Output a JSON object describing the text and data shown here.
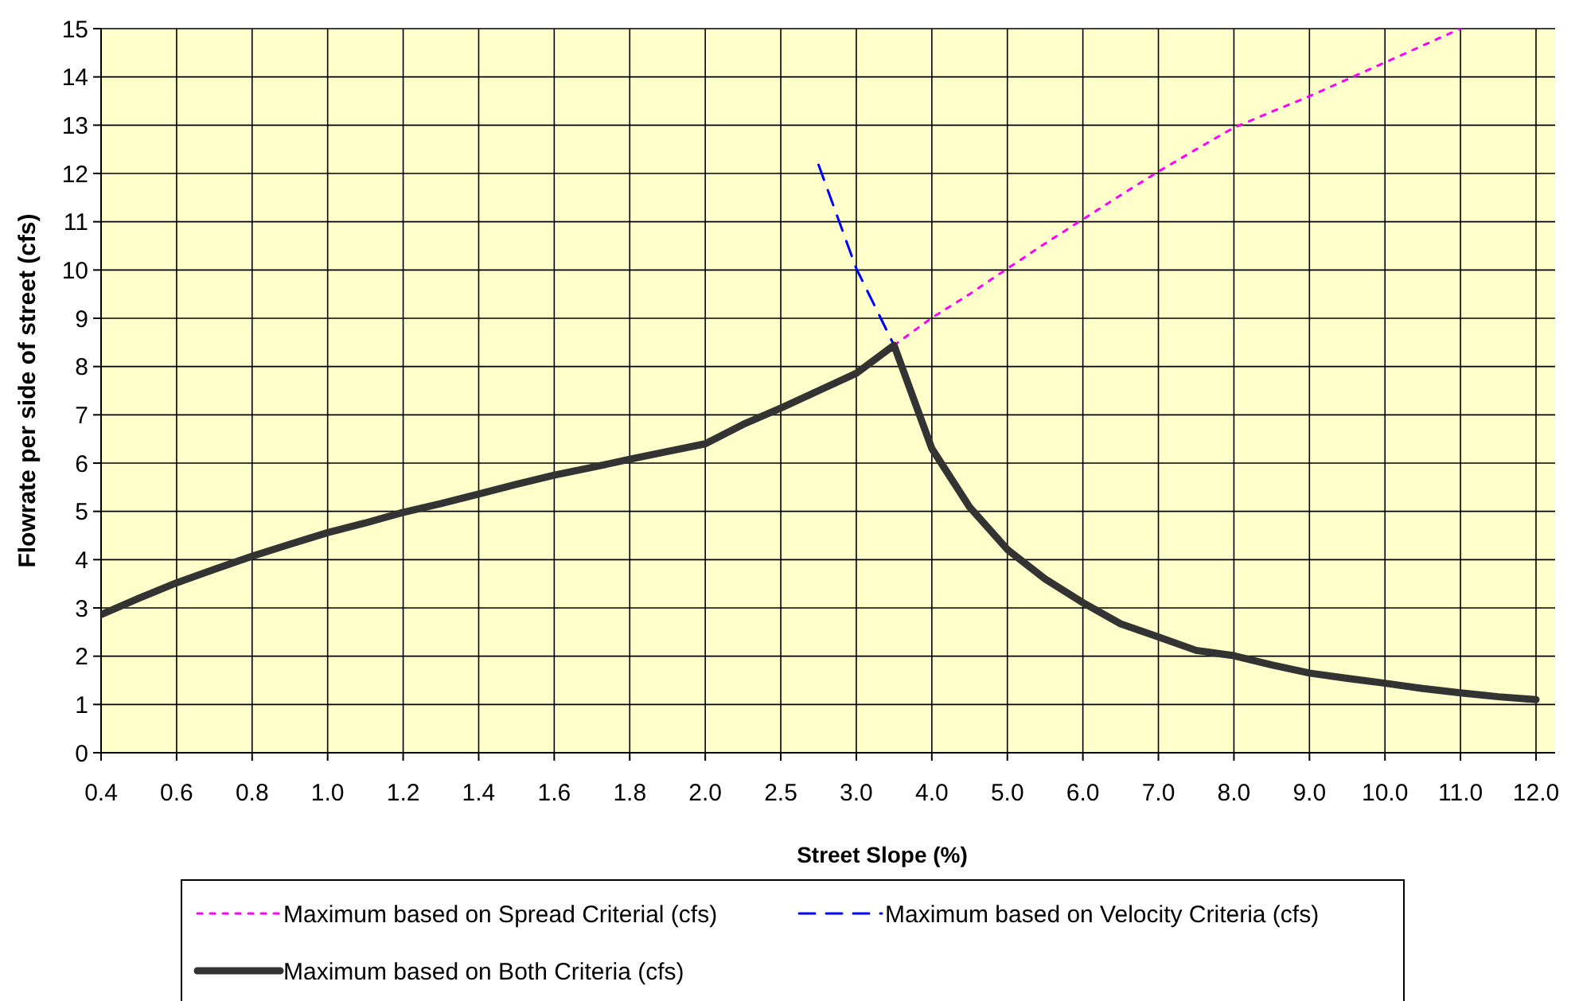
{
  "chart_data": {
    "type": "line",
    "xlabel": "Street Slope (%)",
    "ylabel": "Flowrate per side of street (cfs)",
    "categories": [
      "0.4",
      null,
      "0.6",
      null,
      "0.8",
      null,
      "1.0",
      null,
      "1.2",
      null,
      "1.4",
      null,
      "1.6",
      null,
      "1.8",
      null,
      "2.0",
      null,
      "2.5",
      null,
      "3.0",
      null,
      "4.0",
      null,
      "5.0",
      null,
      "6.0",
      null,
      "7.0",
      null,
      "8.0",
      null,
      "9.0",
      null,
      "10.0",
      null,
      "11.0",
      null,
      "12.0"
    ],
    "ylim": [
      0,
      15
    ],
    "yticks": [
      0,
      1,
      2,
      3,
      4,
      5,
      6,
      7,
      8,
      9,
      10,
      11,
      12,
      13,
      14,
      15
    ],
    "grid": true,
    "legend": "bottom",
    "series": [
      {
        "name": "Maximum based on Spread Criterial (cfs)",
        "color": "#ff00ff",
        "line_style": "dotted",
        "values": [
          null,
          null,
          null,
          null,
          null,
          null,
          null,
          null,
          null,
          null,
          null,
          null,
          null,
          null,
          null,
          null,
          null,
          null,
          null,
          null,
          null,
          8.44,
          9.01,
          9.5,
          10.03,
          10.55,
          11.05,
          11.55,
          12.04,
          12.5,
          12.95,
          13.28,
          13.6,
          13.95,
          14.3,
          14.65,
          15.0,
          null,
          null
        ]
      },
      {
        "name": "Maximum based on Velocity Criteria (cfs)",
        "color": "#0000ff",
        "line_style": "dashed",
        "values": [
          null,
          null,
          null,
          null,
          null,
          null,
          null,
          null,
          null,
          null,
          null,
          null,
          null,
          null,
          null,
          null,
          null,
          null,
          null,
          12.18,
          10.03,
          8.44,
          null,
          null,
          null,
          null,
          null,
          null,
          null,
          null,
          null,
          null,
          null,
          null,
          null,
          null,
          null,
          null,
          null
        ]
      },
      {
        "name": "Maximum based on Both Criteria (cfs)",
        "color": "#333333",
        "line_style": "solid",
        "values": [
          2.86,
          3.2,
          3.52,
          3.8,
          4.07,
          4.32,
          4.56,
          4.76,
          4.98,
          5.16,
          5.36,
          5.56,
          5.75,
          5.91,
          6.08,
          6.24,
          6.4,
          6.8,
          7.14,
          7.5,
          7.86,
          8.44,
          6.3,
          5.09,
          4.21,
          3.6,
          3.11,
          2.67,
          2.4,
          2.12,
          2.01,
          1.82,
          1.65,
          1.54,
          1.44,
          1.33,
          1.24,
          1.16,
          1.1
        ]
      }
    ]
  }
}
